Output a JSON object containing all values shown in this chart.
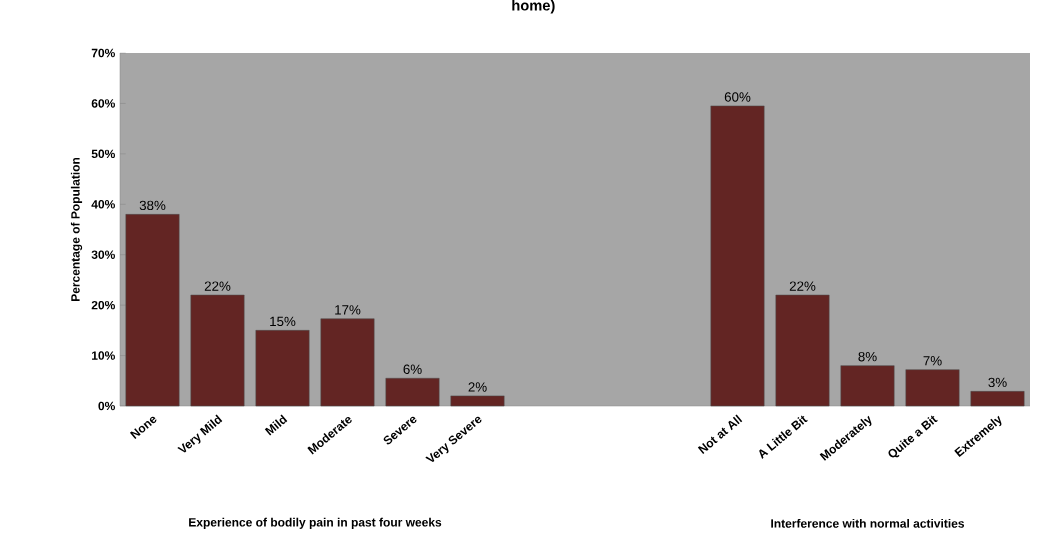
{
  "chart_data": {
    "type": "bar",
    "title": "home)",
    "ylabel": "Percentage of Population",
    "categories": [
      "None",
      "Very Mild",
      "Mild",
      "Moderate",
      "Severe",
      "Very Severe",
      null,
      null,
      null,
      "Not at All",
      "A Little Bit",
      "Moderately",
      "Quite a Bit",
      "Extremely"
    ],
    "values": [
      38,
      22,
      15,
      17.3,
      5.5,
      2,
      null,
      null,
      null,
      59.5,
      22,
      8,
      7.2,
      2.9
    ],
    "value_labels": [
      "38%",
      "22%",
      "15%",
      "17%",
      "6%",
      "2%",
      null,
      null,
      null,
      "60%",
      "22%",
      "8%",
      "7%",
      "3%"
    ],
    "color": "#632523",
    "ylim": [
      0,
      70
    ],
    "yticks": [
      {
        "value": 0,
        "label": "0%"
      },
      {
        "value": 10,
        "label": "10%"
      },
      {
        "value": 20,
        "label": "20%"
      },
      {
        "value": 30,
        "label": "30%"
      },
      {
        "value": 40,
        "label": "40%"
      },
      {
        "value": 50,
        "label": "50%"
      },
      {
        "value": 60,
        "label": "60%"
      },
      {
        "value": 70,
        "label": "70%"
      }
    ],
    "annotations": [
      "Experience of bodily pain in past four weeks",
      "Interference with normal activities"
    ]
  }
}
